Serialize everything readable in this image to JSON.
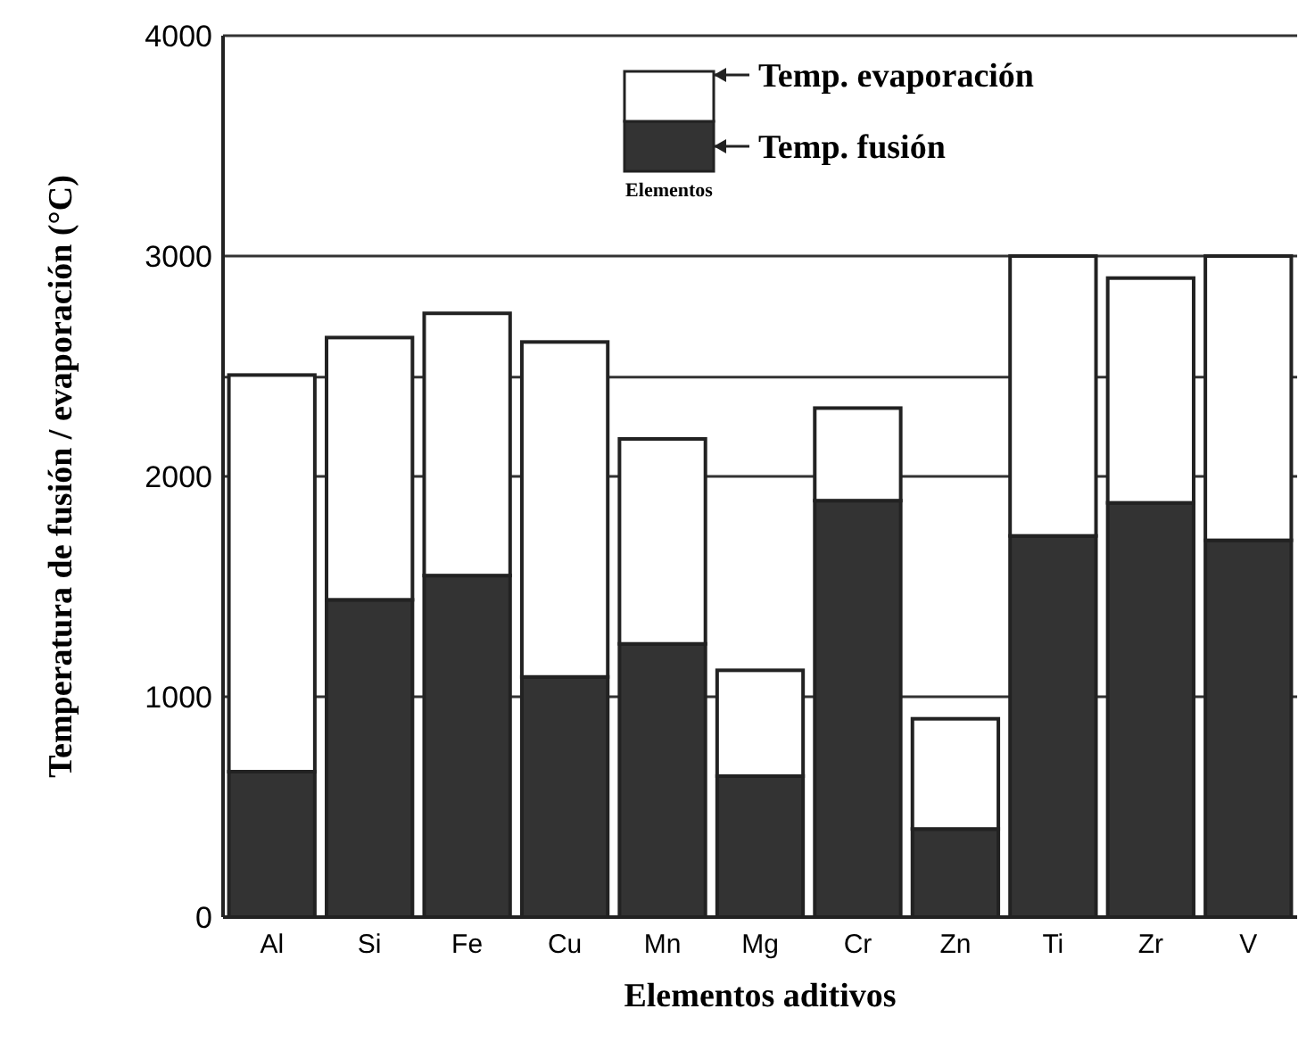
{
  "chart_data": {
    "type": "bar",
    "stacked": true,
    "xlabel": "Elementos aditivos",
    "ylabel": "Temperatura de fusión / evaporación (°C)",
    "categories": [
      "Al",
      "Si",
      "Fe",
      "Cu",
      "Mn",
      "Mg",
      "Cr",
      "Zn",
      "Ti",
      "Zr",
      "V"
    ],
    "series": [
      {
        "name": "Temp. fusión",
        "color": "#333333",
        "values": [
          660,
          1440,
          1550,
          1090,
          1240,
          640,
          1890,
          400,
          1730,
          1880,
          1710
        ]
      },
      {
        "name": "Temp. evaporación",
        "color": "#ffffff",
        "values": [
          1800,
          1190,
          1190,
          1520,
          930,
          480,
          420,
          500,
          1270,
          1020,
          1290
        ]
      }
    ],
    "ylim": [
      0,
      4000
    ],
    "yticks": [
      0,
      1000,
      2000,
      3000,
      4000
    ],
    "grid": "y",
    "legend": "top",
    "ref_lines": [
      {
        "axis": "y",
        "value": 2450
      }
    ],
    "annotations": [
      "Elementos"
    ]
  }
}
